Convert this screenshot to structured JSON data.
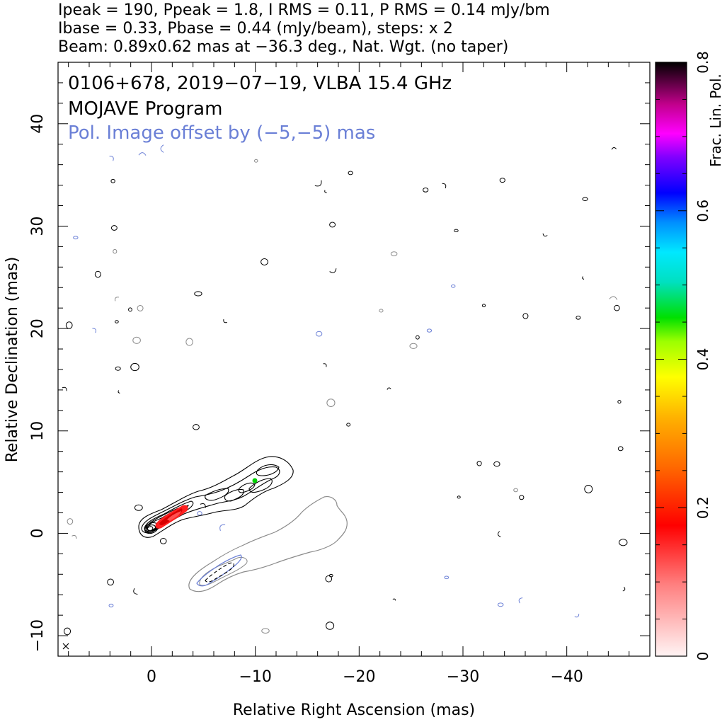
{
  "header": {
    "line1": "Ipeak = 190, Ppeak = 1.8, I RMS = 0.11, P RMS = 0.14 mJy/bm",
    "line2": "Ibase = 0.33, Pbase = 0.44 (mJy/beam), steps: x 2",
    "line3": "Beam: 0.89x0.62 mas at −36.3 deg., Nat. Wgt. (no taper)"
  },
  "chart_data": {
    "type": "contour",
    "title_lines": [
      "0106+678, 2019−07−19, VLBA 15.4 GHz",
      "MOJAVE Program"
    ],
    "annotation": "Pol. Image offset by (−5,−5) mas",
    "xlabel": "Relative Right Ascension (mas)",
    "ylabel": "Relative Declination (mas)",
    "xlim": [
      9,
      -48
    ],
    "ylim": [
      -12,
      46
    ],
    "xticks": [
      0,
      -10,
      -20,
      -30,
      -40
    ],
    "yticks": [
      -10,
      0,
      10,
      20,
      30,
      40
    ],
    "xtick_labels": [
      "0",
      "−10",
      "−20",
      "−30",
      "−40"
    ],
    "ytick_labels": [
      "−10",
      "0",
      "10",
      "20",
      "30",
      "40"
    ],
    "colorbar": {
      "label": "Frac. Lin. Pol.",
      "range": [
        0,
        0.8
      ],
      "ticks": [
        0,
        0.2,
        0.4,
        0.6,
        0.8
      ],
      "tick_labels": [
        "0",
        "0.2",
        "0.4",
        "0.6",
        "0.8"
      ]
    },
    "colors": {
      "total_intensity": "#000000",
      "pol_offset_contours": "#6a7fd6",
      "pol_image_envelope": "#8a8a8a",
      "annotation": "#6a7fd6"
    },
    "jet_core": {
      "x": 0,
      "y": 0
    },
    "jet_end": {
      "x": -14,
      "y": 6
    },
    "pol_core": {
      "x": -5,
      "y": -5
    },
    "fractional_pol_peak_position": {
      "x": -10.3,
      "y": 5.0,
      "value": 0.4
    }
  }
}
